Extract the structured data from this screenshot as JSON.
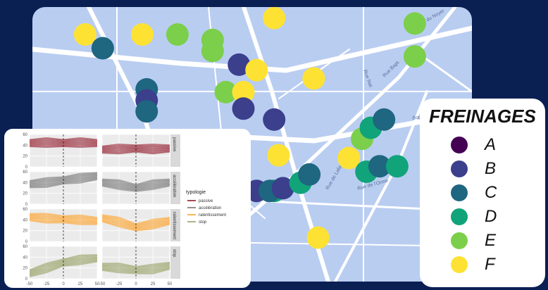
{
  "map": {
    "street_labels": [
      "Rue du Noyer",
      "Rue Nat.",
      "Rue Bapt.",
      "Rue de l'Orme",
      "Rue de Lafayette",
      "Boulevard de France"
    ],
    "markers": [
      {
        "category": "F",
        "x": 0.12,
        "y": 0.1
      },
      {
        "category": "C",
        "x": 0.16,
        "y": 0.15
      },
      {
        "category": "F",
        "x": 0.25,
        "y": 0.1
      },
      {
        "category": "E",
        "x": 0.33,
        "y": 0.1
      },
      {
        "category": "E",
        "x": 0.41,
        "y": 0.12
      },
      {
        "category": "E",
        "x": 0.41,
        "y": 0.16
      },
      {
        "category": "F",
        "x": 0.55,
        "y": 0.04
      },
      {
        "category": "E",
        "x": 0.87,
        "y": 0.06
      },
      {
        "category": "E",
        "x": 0.87,
        "y": 0.18
      },
      {
        "category": "B",
        "x": 0.47,
        "y": 0.21
      },
      {
        "category": "F",
        "x": 0.51,
        "y": 0.23
      },
      {
        "category": "F",
        "x": 0.64,
        "y": 0.26
      },
      {
        "category": "C",
        "x": 0.26,
        "y": 0.3
      },
      {
        "category": "B",
        "x": 0.26,
        "y": 0.34
      },
      {
        "category": "C",
        "x": 0.26,
        "y": 0.38
      },
      {
        "category": "E",
        "x": 0.44,
        "y": 0.31
      },
      {
        "category": "F",
        "x": 0.48,
        "y": 0.31
      },
      {
        "category": "B",
        "x": 0.48,
        "y": 0.37
      },
      {
        "category": "B",
        "x": 0.55,
        "y": 0.41
      },
      {
        "category": "F",
        "x": 0.56,
        "y": 0.54
      },
      {
        "category": "F",
        "x": 0.72,
        "y": 0.55
      },
      {
        "category": "E",
        "x": 0.75,
        "y": 0.48
      },
      {
        "category": "D",
        "x": 0.77,
        "y": 0.44
      },
      {
        "category": "C",
        "x": 0.8,
        "y": 0.41
      },
      {
        "category": "D",
        "x": 0.76,
        "y": 0.6
      },
      {
        "category": "C",
        "x": 0.79,
        "y": 0.58
      },
      {
        "category": "D",
        "x": 0.83,
        "y": 0.58
      },
      {
        "category": "B",
        "x": 0.51,
        "y": 0.67
      },
      {
        "category": "D",
        "x": 0.55,
        "y": 0.67
      },
      {
        "category": "C",
        "x": 0.54,
        "y": 0.67
      },
      {
        "category": "B",
        "x": 0.57,
        "y": 0.66
      },
      {
        "category": "D",
        "x": 0.61,
        "y": 0.64
      },
      {
        "category": "C",
        "x": 0.63,
        "y": 0.61
      },
      {
        "category": "F",
        "x": 0.65,
        "y": 0.84
      }
    ]
  },
  "legend": {
    "title": "FREINAGES",
    "items": [
      {
        "label": "A",
        "color": "#440154"
      },
      {
        "label": "B",
        "color": "#3b3f8c"
      },
      {
        "label": "C",
        "color": "#1f6680"
      },
      {
        "label": "D",
        "color": "#11a37a"
      },
      {
        "label": "E",
        "color": "#7ccf4a"
      },
      {
        "label": "F",
        "color": "#fde233"
      }
    ]
  },
  "chart_data": {
    "type": "line",
    "facet_rows": [
      "passive",
      "accélération",
      "ralentissement",
      "stop"
    ],
    "x_ticks": [
      "-50",
      "-25",
      "0",
      "25",
      "50"
    ],
    "y_ticks": [
      "0",
      "20",
      "40",
      "60"
    ],
    "xlim": [
      -50,
      50
    ],
    "ylim": [
      0,
      60
    ],
    "reference_line_x": 0,
    "legend_title": "typologie",
    "series": [
      {
        "name": "passive",
        "color": "#8b0a1a",
        "left": {
          "x": [
            -50,
            -25,
            0,
            25,
            50
          ],
          "y": [
            44,
            45,
            44,
            45,
            44
          ]
        },
        "right": {
          "x": [
            -50,
            -25,
            0,
            25,
            50
          ],
          "y": [
            32,
            33,
            34,
            33,
            34
          ]
        }
      },
      {
        "name": "accélération",
        "color": "#6b6b6b",
        "left": {
          "x": [
            -50,
            -25,
            0,
            25,
            50
          ],
          "y": [
            37,
            40,
            44,
            48,
            52
          ]
        },
        "right": {
          "x": [
            -50,
            -25,
            0,
            25,
            50
          ],
          "y": [
            40,
            36,
            30,
            36,
            40
          ]
        }
      },
      {
        "name": "ralentissement",
        "color": "#ff9c1a",
        "left": {
          "x": [
            -50,
            -25,
            0,
            25,
            50
          ],
          "y": [
            45,
            43,
            41,
            40,
            38
          ]
        },
        "right": {
          "x": [
            -50,
            -25,
            0,
            25,
            50
          ],
          "y": [
            43,
            36,
            26,
            32,
            38
          ]
        }
      },
      {
        "name": "stop",
        "color": "#8f9a5a",
        "left": {
          "x": [
            -50,
            -25,
            0,
            25,
            50
          ],
          "y": [
            10,
            20,
            30,
            35,
            38
          ]
        },
        "right": {
          "x": [
            -50,
            -25,
            0,
            25,
            50
          ],
          "y": [
            22,
            20,
            16,
            18,
            24
          ]
        }
      }
    ]
  }
}
